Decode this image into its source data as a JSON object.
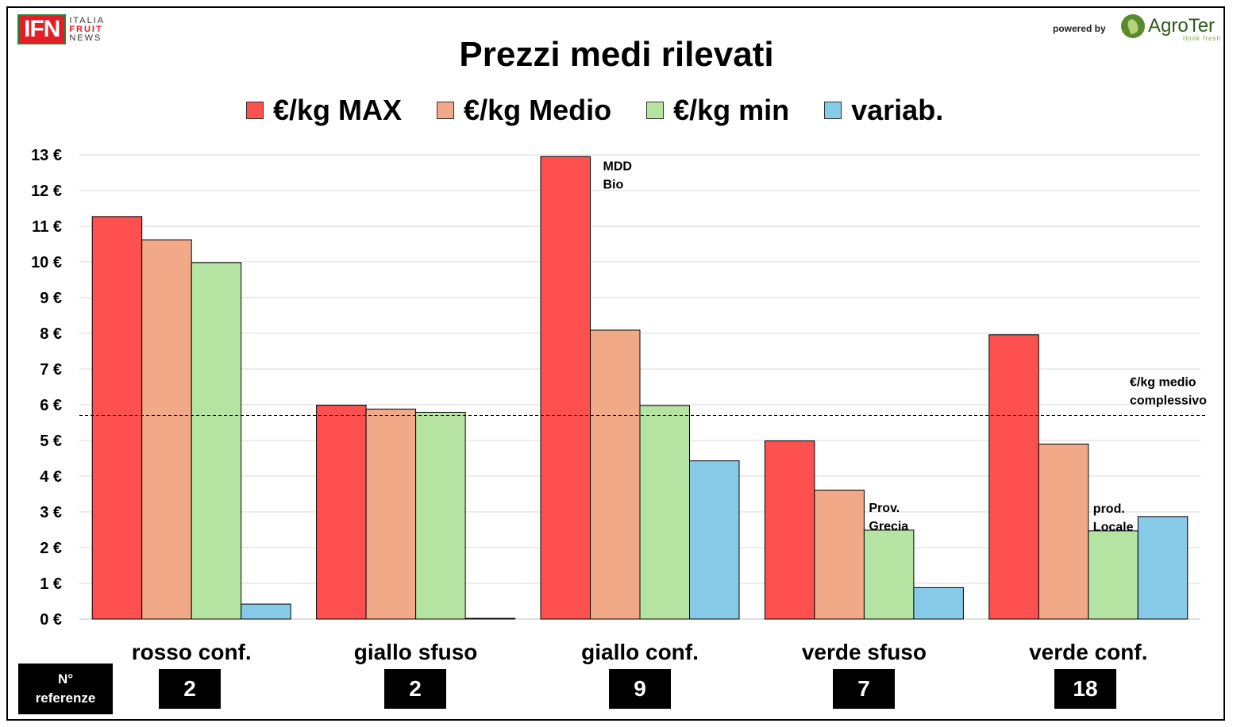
{
  "branding": {
    "ifn_logo": "IFN",
    "ifn_tagline": [
      "ITALIA",
      "FRUIT",
      "NEWS"
    ],
    "powered_by": "powered by",
    "agroter_logo": "AgroTer",
    "agroter_tagline": "think fresh"
  },
  "legend": [
    {
      "label": "€/kg MAX",
      "color": "#ff5050"
    },
    {
      "label": "€/kg Medio",
      "color": "#f2a987"
    },
    {
      "label": "€/kg min",
      "color": "#b5e3a1"
    },
    {
      "label": "variab.",
      "color": "#87cbe9"
    }
  ],
  "chart_data": {
    "type": "bar",
    "title": "Prezzi medi rilevati",
    "categories": [
      "rosso conf.",
      "giallo sfuso",
      "giallo conf.",
      "verde sfuso",
      "verde conf."
    ],
    "series": [
      {
        "name": "€/kg MAX",
        "color": "#ff5050",
        "values": [
          11.27,
          5.99,
          12.95,
          4.99,
          7.96
        ]
      },
      {
        "name": "€/kg Medio",
        "color": "#f2a987",
        "values": [
          10.62,
          5.88,
          8.09,
          3.61,
          4.9
        ]
      },
      {
        "name": "€/kg min",
        "color": "#b5e3a1",
        "values": [
          9.98,
          5.79,
          5.98,
          2.49,
          2.47
        ]
      },
      {
        "name": "variab.",
        "color": "#87cbe9",
        "values": [
          0.42,
          0.02,
          4.43,
          0.88,
          2.87
        ]
      }
    ],
    "ylim": [
      0,
      13
    ],
    "yticks": [
      "0 €",
      "1 €",
      "2 €",
      "3 €",
      "4 €",
      "5 €",
      "6 €",
      "7 €",
      "8 €",
      "9 €",
      "10 €",
      "11 €",
      "12 €",
      "13 €"
    ],
    "grid": true,
    "reference_line": {
      "value": 5.7,
      "label_lines": [
        "€/kg medio",
        "complessivo"
      ]
    },
    "annotations": [
      {
        "category": "giallo conf.",
        "lines": [
          "MDD",
          "Bio"
        ]
      },
      {
        "category": "verde sfuso",
        "lines": [
          "Prov.",
          "Grecia"
        ]
      },
      {
        "category": "verde conf.",
        "lines": [
          "prod.",
          "Locale"
        ]
      }
    ]
  },
  "references": {
    "header_lines": [
      "N°",
      "referenze"
    ],
    "counts": [
      "2",
      "2",
      "9",
      "7",
      "18"
    ]
  }
}
